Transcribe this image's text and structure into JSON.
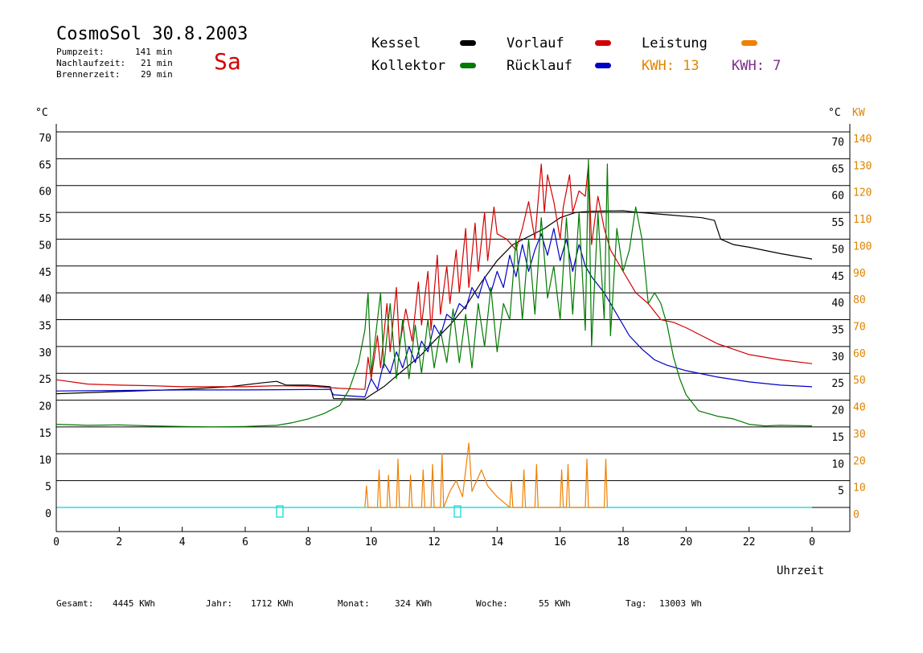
{
  "header": {
    "title": "CosmoSol 30.8.2003",
    "day": "Sa",
    "stats": [
      {
        "label": "Pumpzeit:",
        "value": "141 min"
      },
      {
        "label": "Nachlaufzeit:",
        "value": "21 min"
      },
      {
        "label": "Brennerzeit:",
        "value": "29 min"
      }
    ]
  },
  "legend": {
    "kessel": "Kessel",
    "kollektor": "Kollektor",
    "vorlauf": "Vorlauf",
    "ruecklauf": "Rücklauf",
    "leistung": "Leistung",
    "kwh1": "KWH: 13",
    "kwh2": "KWH: 7"
  },
  "footer": {
    "gesamt_label": "Gesamt:",
    "gesamt_value": "4445 KWh",
    "jahr_label": "Jahr:",
    "jahr_value": "1712 KWh",
    "monat_label": "Monat:",
    "monat_value": "324 KWh",
    "woche_label": "Woche:",
    "woche_value": "55 KWh",
    "tag_label": "Tag:",
    "tag_value": "13003 Wh"
  },
  "colors": {
    "kessel": "#000000",
    "kollektor": "#007a00",
    "vorlauf": "#d40000",
    "ruecklauf": "#0000c8",
    "leistung": "#f08000",
    "kwh2": "#7b2d8b",
    "zero_line": "#00d8d8",
    "axis_right_kw": "#e08400"
  },
  "chart_data": {
    "type": "line",
    "xlabel": "Uhrzeit",
    "ylabel_left": "°C",
    "ylabel_right_c": "°C",
    "ylabel_right_kw": "KW",
    "xlim": [
      0,
      24
    ],
    "ylim": [
      0,
      70
    ],
    "ylim_right_kw": [
      0,
      140
    ],
    "grid": true,
    "x_ticks": [
      "0",
      "2",
      "4",
      "6",
      "8",
      "10",
      "12",
      "14",
      "16",
      "18",
      "20",
      "22",
      "0"
    ],
    "y_ticks_left": [
      "0",
      "5",
      "10",
      "15",
      "20",
      "25",
      "30",
      "35",
      "40",
      "45",
      "50",
      "55",
      "60",
      "65",
      "70"
    ],
    "y_ticks_right_c": [
      "",
      "5",
      "10",
      "15",
      "20",
      "25",
      "30",
      "35",
      "40",
      "45",
      "50",
      "55",
      "60",
      "65",
      "70"
    ],
    "y_ticks_right_kw": [
      "0",
      "10",
      "20",
      "30",
      "40",
      "50",
      "60",
      "70",
      "80",
      "90",
      "100",
      "110",
      "120",
      "130",
      "140"
    ],
    "series": [
      {
        "name": "Kessel",
        "color_key": "kessel",
        "points": [
          [
            0,
            21.2
          ],
          [
            2,
            21.6
          ],
          [
            4,
            22
          ],
          [
            5.5,
            22.5
          ],
          [
            6.5,
            23.2
          ],
          [
            7,
            23.5
          ],
          [
            7.3,
            22.8
          ],
          [
            8,
            22.8
          ],
          [
            8.7,
            22.5
          ],
          [
            8.8,
            20.3
          ],
          [
            9.8,
            20.2
          ],
          [
            10,
            21
          ],
          [
            10.4,
            22.5
          ],
          [
            10.8,
            24.5
          ],
          [
            11.2,
            26.5
          ],
          [
            11.6,
            28.5
          ],
          [
            12,
            31
          ],
          [
            12.5,
            34
          ],
          [
            13,
            37.5
          ],
          [
            13.5,
            42
          ],
          [
            14,
            46
          ],
          [
            14.5,
            49
          ],
          [
            15,
            50.5
          ],
          [
            15.5,
            52
          ],
          [
            16,
            54
          ],
          [
            16.5,
            55
          ],
          [
            17,
            55.2
          ],
          [
            18,
            55.3
          ],
          [
            18.5,
            55
          ],
          [
            19.5,
            54.5
          ],
          [
            20.5,
            54
          ],
          [
            20.9,
            53.5
          ],
          [
            21.1,
            50
          ],
          [
            21.5,
            49
          ],
          [
            22,
            48.5
          ],
          [
            23,
            47.3
          ],
          [
            24,
            46.3
          ]
        ]
      },
      {
        "name": "Vorlauf",
        "color_key": "vorlauf",
        "points": [
          [
            0,
            23.8
          ],
          [
            1,
            23
          ],
          [
            2,
            22.8
          ],
          [
            3,
            22.7
          ],
          [
            4,
            22.5
          ],
          [
            5,
            22.5
          ],
          [
            6,
            22.5
          ],
          [
            7,
            22.7
          ],
          [
            8,
            22.6
          ],
          [
            9,
            22.2
          ],
          [
            9.8,
            22
          ],
          [
            9.9,
            28
          ],
          [
            10,
            24
          ],
          [
            10.2,
            32
          ],
          [
            10.3,
            26
          ],
          [
            10.5,
            38
          ],
          [
            10.6,
            29
          ],
          [
            10.8,
            41
          ],
          [
            10.9,
            30
          ],
          [
            11.1,
            37
          ],
          [
            11.3,
            31
          ],
          [
            11.5,
            42
          ],
          [
            11.6,
            34
          ],
          [
            11.8,
            44
          ],
          [
            11.9,
            33
          ],
          [
            12.1,
            47
          ],
          [
            12.2,
            36
          ],
          [
            12.4,
            45
          ],
          [
            12.5,
            38
          ],
          [
            12.7,
            48
          ],
          [
            12.8,
            40
          ],
          [
            13,
            52
          ],
          [
            13.1,
            41
          ],
          [
            13.3,
            53
          ],
          [
            13.4,
            44
          ],
          [
            13.6,
            55
          ],
          [
            13.7,
            46
          ],
          [
            13.9,
            56
          ],
          [
            14,
            51
          ],
          [
            14.3,
            50
          ],
          [
            14.6,
            48
          ],
          [
            14.8,
            52
          ],
          [
            15,
            57
          ],
          [
            15.2,
            50
          ],
          [
            15.4,
            64
          ],
          [
            15.5,
            55
          ],
          [
            15.6,
            62
          ],
          [
            15.8,
            57
          ],
          [
            16,
            50
          ],
          [
            16.1,
            56
          ],
          [
            16.3,
            62
          ],
          [
            16.4,
            55
          ],
          [
            16.6,
            59
          ],
          [
            16.8,
            58
          ],
          [
            16.9,
            64
          ],
          [
            17,
            49
          ],
          [
            17.2,
            58
          ],
          [
            17.4,
            52
          ],
          [
            17.6,
            48
          ],
          [
            17.8,
            46
          ],
          [
            18,
            44
          ],
          [
            18.4,
            40
          ],
          [
            18.8,
            38
          ],
          [
            19.2,
            35
          ],
          [
            19.6,
            34.5
          ],
          [
            20,
            33.5
          ],
          [
            20.5,
            32
          ],
          [
            21,
            30.5
          ],
          [
            21.5,
            29.5
          ],
          [
            22,
            28.5
          ],
          [
            23,
            27.5
          ],
          [
            24,
            26.8
          ]
        ]
      },
      {
        "name": "Rücklauf",
        "color_key": "ruecklauf",
        "points": [
          [
            0,
            21.7
          ],
          [
            2,
            21.8
          ],
          [
            4,
            21.9
          ],
          [
            6,
            21.9
          ],
          [
            8.7,
            22.0
          ],
          [
            8.8,
            21.0
          ],
          [
            9.8,
            20.6
          ],
          [
            10,
            24
          ],
          [
            10.2,
            22
          ],
          [
            10.4,
            27
          ],
          [
            10.6,
            25
          ],
          [
            10.8,
            29
          ],
          [
            11,
            26
          ],
          [
            11.2,
            30
          ],
          [
            11.4,
            27
          ],
          [
            11.6,
            31
          ],
          [
            11.8,
            29
          ],
          [
            12,
            34
          ],
          [
            12.2,
            32
          ],
          [
            12.4,
            36
          ],
          [
            12.6,
            35
          ],
          [
            12.8,
            38
          ],
          [
            13,
            37
          ],
          [
            13.2,
            41
          ],
          [
            13.4,
            39
          ],
          [
            13.6,
            43
          ],
          [
            13.8,
            40
          ],
          [
            14,
            44
          ],
          [
            14.2,
            41
          ],
          [
            14.4,
            47
          ],
          [
            14.6,
            43
          ],
          [
            14.8,
            49
          ],
          [
            15,
            44
          ],
          [
            15.2,
            48
          ],
          [
            15.4,
            51
          ],
          [
            15.6,
            47
          ],
          [
            15.8,
            52
          ],
          [
            16,
            46
          ],
          [
            16.2,
            50
          ],
          [
            16.4,
            44
          ],
          [
            16.6,
            49
          ],
          [
            16.8,
            45
          ],
          [
            17,
            43
          ],
          [
            17.4,
            40
          ],
          [
            17.8,
            36
          ],
          [
            18.2,
            32
          ],
          [
            18.6,
            29.5
          ],
          [
            19,
            27.5
          ],
          [
            19.4,
            26.5
          ],
          [
            20,
            25.5
          ],
          [
            21,
            24.3
          ],
          [
            22,
            23.4
          ],
          [
            23,
            22.8
          ],
          [
            24,
            22.5
          ]
        ]
      },
      {
        "name": "Kollektor",
        "color_key": "kollektor",
        "points": [
          [
            0,
            15.5
          ],
          [
            1,
            15.3
          ],
          [
            2,
            15.4
          ],
          [
            3,
            15.2
          ],
          [
            4,
            15.1
          ],
          [
            5,
            15
          ],
          [
            6,
            15.1
          ],
          [
            7,
            15.3
          ],
          [
            7.5,
            15.8
          ],
          [
            8,
            16.5
          ],
          [
            8.5,
            17.5
          ],
          [
            9,
            19
          ],
          [
            9.3,
            22
          ],
          [
            9.6,
            27
          ],
          [
            9.8,
            33
          ],
          [
            9.9,
            40
          ],
          [
            10,
            25
          ],
          [
            10.1,
            30
          ],
          [
            10.3,
            40
          ],
          [
            10.4,
            26
          ],
          [
            10.6,
            38
          ],
          [
            10.8,
            24
          ],
          [
            11,
            35
          ],
          [
            11.2,
            24
          ],
          [
            11.4,
            34
          ],
          [
            11.6,
            25
          ],
          [
            11.8,
            35
          ],
          [
            12,
            26
          ],
          [
            12.2,
            33
          ],
          [
            12.4,
            27
          ],
          [
            12.6,
            37
          ],
          [
            12.8,
            27
          ],
          [
            13,
            36
          ],
          [
            13.2,
            26
          ],
          [
            13.4,
            38
          ],
          [
            13.6,
            30
          ],
          [
            13.8,
            41
          ],
          [
            14,
            29
          ],
          [
            14.2,
            38
          ],
          [
            14.4,
            35
          ],
          [
            14.6,
            50
          ],
          [
            14.8,
            35
          ],
          [
            15,
            50
          ],
          [
            15.2,
            36
          ],
          [
            15.4,
            54
          ],
          [
            15.6,
            39
          ],
          [
            15.8,
            45
          ],
          [
            16,
            35
          ],
          [
            16.2,
            54
          ],
          [
            16.4,
            36
          ],
          [
            16.6,
            55
          ],
          [
            16.8,
            33
          ],
          [
            16.9,
            65
          ],
          [
            17,
            30
          ],
          [
            17.2,
            55
          ],
          [
            17.4,
            35
          ],
          [
            17.5,
            64
          ],
          [
            17.6,
            32
          ],
          [
            17.8,
            52
          ],
          [
            18,
            44
          ],
          [
            18.2,
            48
          ],
          [
            18.4,
            56
          ],
          [
            18.6,
            50
          ],
          [
            18.8,
            38
          ],
          [
            19,
            40
          ],
          [
            19.2,
            38
          ],
          [
            19.4,
            34
          ],
          [
            19.6,
            28
          ],
          [
            19.8,
            24
          ],
          [
            20,
            21
          ],
          [
            20.4,
            18
          ],
          [
            21,
            17
          ],
          [
            21.5,
            16.5
          ],
          [
            22,
            15.5
          ],
          [
            22.5,
            15.2
          ],
          [
            23,
            15.3
          ],
          [
            24,
            15.2
          ]
        ]
      },
      {
        "name": "Leistung",
        "color_key": "leistung",
        "axis": "kw",
        "points": [
          [
            9.8,
            0
          ],
          [
            9.85,
            8
          ],
          [
            9.9,
            0
          ],
          [
            10.2,
            0
          ],
          [
            10.25,
            14
          ],
          [
            10.3,
            0
          ],
          [
            10.5,
            0
          ],
          [
            10.55,
            12
          ],
          [
            10.6,
            0
          ],
          [
            10.8,
            0
          ],
          [
            10.85,
            18
          ],
          [
            10.9,
            0
          ],
          [
            11.2,
            0
          ],
          [
            11.25,
            12
          ],
          [
            11.3,
            0
          ],
          [
            11.6,
            0
          ],
          [
            11.65,
            14
          ],
          [
            11.7,
            0
          ],
          [
            11.9,
            0
          ],
          [
            11.95,
            16
          ],
          [
            12,
            0
          ],
          [
            12.2,
            0
          ],
          [
            12.25,
            20
          ],
          [
            12.3,
            0
          ],
          [
            12.5,
            6
          ],
          [
            12.7,
            10
          ],
          [
            12.9,
            4
          ],
          [
            13.1,
            24
          ],
          [
            13.2,
            6
          ],
          [
            13.5,
            14
          ],
          [
            13.7,
            8
          ],
          [
            14,
            4
          ],
          [
            14.4,
            0
          ],
          [
            14.45,
            10
          ],
          [
            14.5,
            0
          ],
          [
            14.8,
            0
          ],
          [
            14.85,
            14
          ],
          [
            14.9,
            0
          ],
          [
            15.2,
            0
          ],
          [
            15.25,
            16
          ],
          [
            15.3,
            0
          ],
          [
            16,
            0
          ],
          [
            16.05,
            14
          ],
          [
            16.1,
            0
          ],
          [
            16.2,
            0
          ],
          [
            16.25,
            16
          ],
          [
            16.3,
            0
          ],
          [
            16.8,
            0
          ],
          [
            16.85,
            18
          ],
          [
            16.9,
            0
          ],
          [
            17.4,
            0
          ],
          [
            17.45,
            18
          ],
          [
            17.5,
            0
          ]
        ]
      }
    ]
  }
}
